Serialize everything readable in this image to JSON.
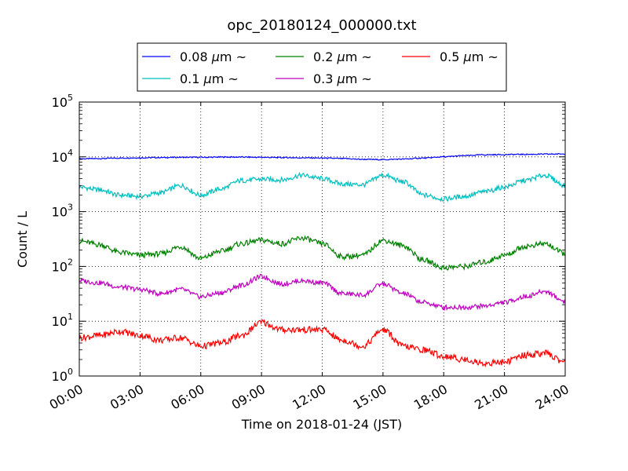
{
  "chart_data": {
    "type": "line",
    "title": "opc_20180124_000000.txt",
    "xlabel": "Time on 2018-01-24 (JST)",
    "ylabel": "Count / L",
    "x_unit": "hours",
    "xlim": [
      0,
      24
    ],
    "ylim": [
      1,
      100000
    ],
    "yscale": "log",
    "grid": true,
    "legend_position": "top-center, above plot",
    "xticks": [
      {
        "value": 0,
        "label": "00:00"
      },
      {
        "value": 3,
        "label": "03:00"
      },
      {
        "value": 6,
        "label": "06:00"
      },
      {
        "value": 9,
        "label": "09:00"
      },
      {
        "value": 12,
        "label": "12:00"
      },
      {
        "value": 15,
        "label": "15:00"
      },
      {
        "value": 18,
        "label": "18:00"
      },
      {
        "value": 21,
        "label": "21:00"
      },
      {
        "value": 24,
        "label": "24:00"
      }
    ],
    "yticks": [
      {
        "value": 1,
        "base": "10",
        "exp": "0"
      },
      {
        "value": 10,
        "base": "10",
        "exp": "1"
      },
      {
        "value": 100,
        "base": "10",
        "exp": "2"
      },
      {
        "value": 1000,
        "base": "10",
        "exp": "3"
      },
      {
        "value": 10000,
        "base": "10",
        "exp": "4"
      },
      {
        "value": 100000,
        "base": "10",
        "exp": "5"
      }
    ],
    "legend_unit": "μm",
    "legend_suffix": "~",
    "series": [
      {
        "name": "0.08",
        "color": "#0000ff",
        "x": [
          0,
          1,
          2,
          3,
          4,
          5,
          6,
          7,
          8,
          9,
          10,
          11,
          12,
          13,
          14,
          15,
          16,
          17,
          18,
          19,
          20,
          21,
          22,
          23,
          24
        ],
        "y": [
          9200,
          9300,
          9500,
          9600,
          9700,
          9800,
          9800,
          9900,
          9900,
          9800,
          9700,
          9600,
          9500,
          9300,
          9000,
          8900,
          9100,
          9500,
          10000,
          10500,
          10900,
          11000,
          11100,
          11200,
          11300
        ]
      },
      {
        "name": "0.1",
        "color": "#00bfbf",
        "x": [
          0,
          1,
          2,
          3,
          4,
          5,
          6,
          7,
          8,
          9,
          10,
          11,
          12,
          13,
          14,
          15,
          16,
          17,
          18,
          19,
          20,
          21,
          22,
          23,
          24
        ],
        "y": [
          2800,
          2500,
          2000,
          1900,
          2200,
          3000,
          2000,
          2600,
          3700,
          3900,
          3800,
          4600,
          4000,
          3200,
          3100,
          4600,
          3500,
          2000,
          1700,
          1900,
          2300,
          2800,
          3700,
          4600,
          3000
        ]
      },
      {
        "name": "0.2",
        "color": "#008000",
        "x": [
          0,
          1,
          2,
          3,
          4,
          5,
          6,
          7,
          8,
          9,
          10,
          11,
          12,
          13,
          14,
          15,
          16,
          17,
          18,
          19,
          20,
          21,
          22,
          23,
          24
        ],
        "y": [
          290,
          250,
          180,
          160,
          170,
          230,
          140,
          190,
          260,
          300,
          260,
          330,
          260,
          150,
          160,
          300,
          240,
          130,
          95,
          100,
          120,
          160,
          230,
          260,
          170
        ]
      },
      {
        "name": "0.3",
        "color": "#bf00bf",
        "x": [
          0,
          1,
          2,
          3,
          4,
          5,
          6,
          7,
          8,
          9,
          10,
          11,
          12,
          13,
          14,
          15,
          16,
          17,
          18,
          19,
          20,
          21,
          22,
          23,
          24
        ],
        "y": [
          55,
          50,
          42,
          38,
          32,
          38,
          28,
          33,
          45,
          65,
          48,
          55,
          50,
          32,
          30,
          48,
          32,
          22,
          18,
          18,
          19,
          22,
          28,
          35,
          23
        ]
      },
      {
        "name": "0.5",
        "color": "#ff0000",
        "x": [
          0,
          1,
          2,
          3,
          4,
          5,
          6,
          7,
          8,
          9,
          10,
          11,
          12,
          13,
          14,
          15,
          16,
          17,
          18,
          19,
          20,
          21,
          22,
          23,
          24
        ],
        "y": [
          5.0,
          5.5,
          6.5,
          5.5,
          4.5,
          5.0,
          3.5,
          4.0,
          5.5,
          9.5,
          7.0,
          7.0,
          7.0,
          4.5,
          3.5,
          7.0,
          3.5,
          3.0,
          2.3,
          2.0,
          1.7,
          1.8,
          2.4,
          2.6,
          1.8
        ]
      }
    ]
  }
}
